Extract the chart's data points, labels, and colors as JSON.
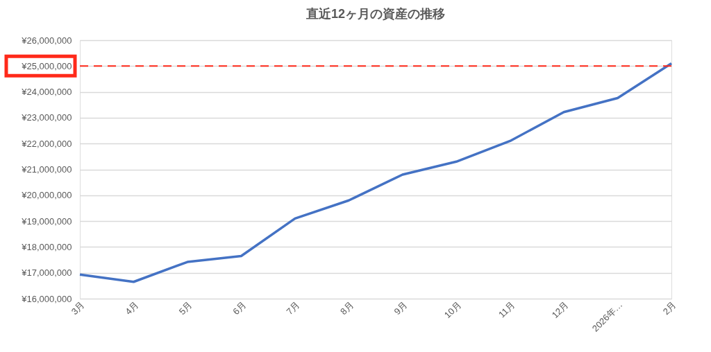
{
  "chart_data": {
    "type": "line",
    "title": "直近12ヶ月の資産の推移",
    "categories": [
      "3月",
      "4月",
      "5月",
      "6月",
      "7月",
      "8月",
      "9月",
      "10月",
      "11月",
      "12月",
      "2026年…",
      "2月"
    ],
    "series": [
      {
        "color": "#4472c4",
        "values": [
          16930000,
          16650000,
          17420000,
          17650000,
          19100000,
          19800000,
          20800000,
          21300000,
          22100000,
          23220000,
          23760000,
          25100000
        ]
      }
    ],
    "ylim": [
      16000000,
      26000000
    ],
    "yticks": [
      {
        "value": 16000000,
        "label": "¥16,000,000"
      },
      {
        "value": 17000000,
        "label": "¥17,000,000"
      },
      {
        "value": 18000000,
        "label": "¥18,000,000"
      },
      {
        "value": 19000000,
        "label": "¥19,000,000"
      },
      {
        "value": 20000000,
        "label": "¥20,000,000"
      },
      {
        "value": 21000000,
        "label": "¥21,000,000"
      },
      {
        "value": 22000000,
        "label": "¥22,000,000"
      },
      {
        "value": 23000000,
        "label": "¥23,000,000"
      },
      {
        "value": 24000000,
        "label": "¥24,000,000"
      },
      {
        "value": 25000000,
        "label": "¥25,000,000"
      },
      {
        "value": 26000000,
        "label": "¥26,000,000"
      }
    ],
    "ref_lines": [
      {
        "axis": "y",
        "value": 25000000,
        "label": null,
        "color": "#ff2a1a",
        "line_style": "dashed"
      }
    ],
    "grid": "y",
    "marker": "none",
    "line_style": "solid"
  }
}
